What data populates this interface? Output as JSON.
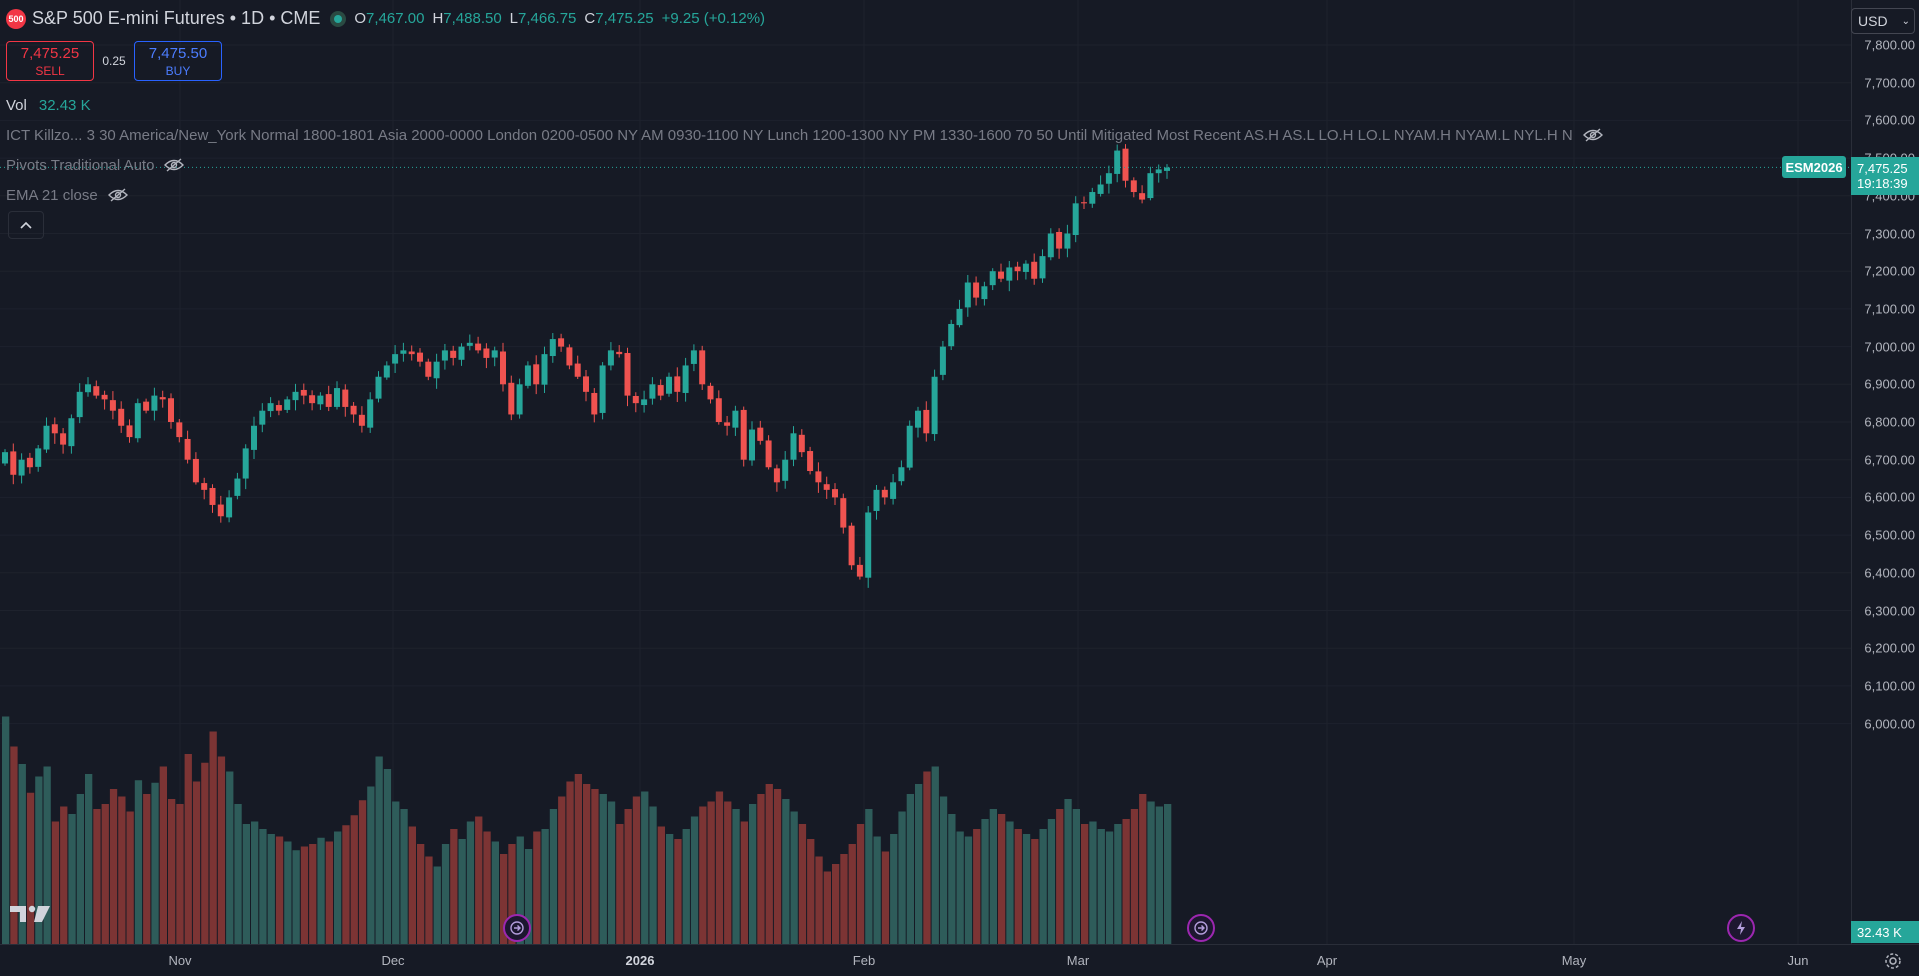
{
  "header": {
    "symbol_badge": "500",
    "title": "S&P 500 E-mini Futures • 1D • CME",
    "ohlc": {
      "o_key": "O",
      "o": "7,467.00",
      "h_key": "H",
      "h": "7,488.50",
      "l_key": "L",
      "l": "7,466.75",
      "c_key": "C",
      "c": "7,475.25"
    },
    "change": "+9.25 (+0.12%)"
  },
  "trade": {
    "sell_price": "7,475.25",
    "sell_label": "SELL",
    "spread": "0.25",
    "buy_price": "7,475.50",
    "buy_label": "BUY"
  },
  "indicators": {
    "volume_label": "Vol",
    "volume_value": "32.43 K",
    "killzones": "ICT Killzo... 3 30 America/New_York Normal 1800-1801 Asia 2000-0000 London 0200-0500 NY AM 0930-1100 NY Lunch 1200-1300 NY PM 1330-1600 70 50 Until Mitigated Most Recent AS.H AS.L LO.H LO.L NYAM.H NYAM.L NYL.H N",
    "pivots": "Pivots Traditional Auto",
    "ema": "EMA 21 close"
  },
  "currency": "USD",
  "last_price": {
    "symbol_tag": "ESM2026",
    "price": "7,475.25",
    "countdown": "19:18:39"
  },
  "volume_tag": "32.43 K",
  "colors": {
    "up": "#26a69a",
    "down": "#ef5350",
    "vol_up": "#2e5c5a",
    "vol_down": "#7c3434",
    "background": "#161a25"
  },
  "icons": {
    "collapse": "chevron-up-icon",
    "logo": "tradingview-logo",
    "events": "dividend-event-icon",
    "settings": "gear-icon",
    "hidden": "eye-off-icon"
  },
  "chart_data": {
    "type": "candlestick",
    "title": "S&P 500 E-mini Futures • 1D • CME",
    "x_axis_labels": [
      "Nov",
      "Dec",
      "2026",
      "Feb",
      "Mar",
      "Apr",
      "May",
      "Jun"
    ],
    "y_axis_labels": [
      "7,800.00",
      "7,700.00",
      "7,600.00",
      "7,500.00",
      "7,400.00",
      "7,300.00",
      "7,200.00",
      "7,100.00",
      "7,000.00",
      "6,900.00",
      "6,800.00",
      "6,700.00",
      "6,600.00",
      "6,500.00",
      "6,400.00",
      "6,300.00",
      "6,200.00",
      "6,100.00",
      "6,000.00"
    ],
    "ylim": [
      5900,
      7830
    ],
    "series": [
      {
        "name": "ESM2026"
      }
    ],
    "close": [
      6720,
      6660,
      6700,
      6680,
      6730,
      6790,
      6770,
      6740,
      6810,
      6880,
      6900,
      6870,
      6860,
      6830,
      6790,
      6760,
      6850,
      6830,
      6870,
      6860,
      6800,
      6760,
      6700,
      6640,
      6620,
      6580,
      6550,
      6600,
      6650,
      6730,
      6790,
      6830,
      6850,
      6830,
      6860,
      6880,
      6870,
      6850,
      6870,
      6840,
      6890,
      6840,
      6820,
      6790,
      6860,
      6920,
      6950,
      6980,
      6990,
      6980,
      6960,
      6920,
      6960,
      6990,
      6970,
      7000,
      7010,
      6990,
      6970,
      6990,
      6900,
      6820,
      6900,
      6950,
      6900,
      6980,
      7020,
      7000,
      6950,
      6920,
      6880,
      6820,
      6950,
      6990,
      6980,
      6870,
      6850,
      6860,
      6900,
      6870,
      6920,
      6880,
      6950,
      6990,
      6900,
      6860,
      6800,
      6790,
      6830,
      6700,
      6780,
      6750,
      6680,
      6640,
      6700,
      6770,
      6720,
      6670,
      6640,
      6620,
      6600,
      6520,
      6420,
      6390,
      6560,
      6620,
      6600,
      6640,
      6680,
      6790,
      6830,
      6770,
      6920,
      7000,
      7060,
      7100,
      7170,
      7130,
      7160,
      7200,
      7180,
      7210,
      7200,
      7220,
      7180,
      7240,
      7300,
      7260,
      7300,
      7380,
      7380,
      7410,
      7430,
      7460,
      7520,
      7440,
      7410,
      7390,
      7460,
      7470,
      7475
    ],
    "volume": [
      182,
      158,
      144,
      121,
      134,
      142,
      98,
      110,
      104,
      120,
      136,
      108,
      112,
      124,
      118,
      106,
      131,
      120,
      129,
      142,
      116,
      112,
      152,
      130,
      145,
      170,
      150,
      138,
      112,
      96,
      98,
      92,
      88,
      86,
      82,
      75,
      78,
      80,
      85,
      82,
      90,
      95,
      103,
      115,
      126,
      150,
      140,
      114,
      108,
      94,
      80,
      70,
      62,
      80,
      92,
      84,
      98,
      102,
      90,
      82,
      72,
      80,
      86,
      76,
      90,
      92,
      108,
      118,
      130,
      136,
      128,
      124,
      120,
      114,
      96,
      108,
      118,
      122,
      110,
      94,
      88,
      84,
      92,
      102,
      110,
      114,
      122,
      114,
      108,
      98,
      112,
      120,
      128,
      124,
      116,
      106,
      96,
      84,
      70,
      58,
      64,
      72,
      80,
      96,
      108,
      86,
      74,
      88,
      106,
      120,
      128,
      138,
      142,
      118,
      104,
      90,
      86,
      92,
      100,
      108,
      104,
      98,
      92,
      88,
      84,
      92,
      100,
      108,
      116,
      108,
      96,
      98,
      92,
      90,
      96,
      100,
      108,
      120,
      114,
      110,
      112
    ]
  }
}
